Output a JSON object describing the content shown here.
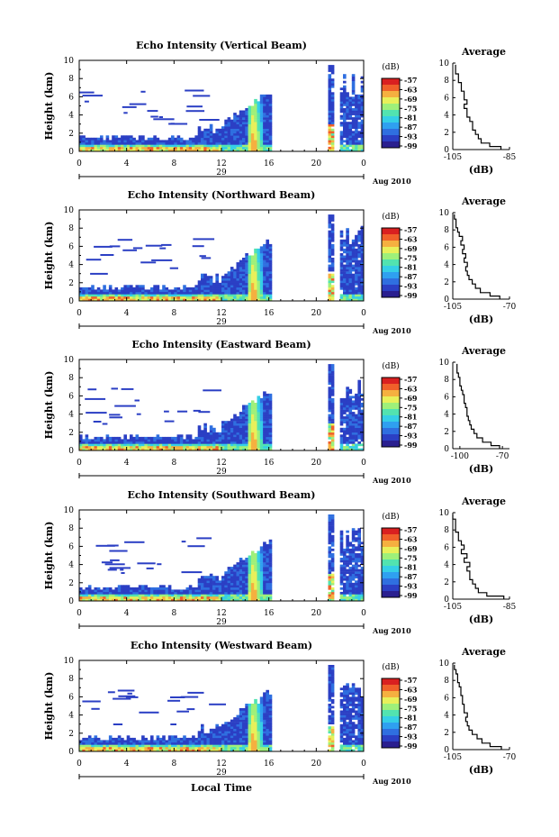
{
  "chart_data": [
    {
      "type": "heatmap",
      "title": "Echo Intensity (Vertical Beam)",
      "ylabel": "Height (km)",
      "xticks": [
        "0",
        "4",
        "8",
        "12",
        "16",
        "20",
        "0"
      ],
      "yticks": [
        "0",
        "2",
        "4",
        "6",
        "8",
        "10"
      ],
      "ylim": [
        0,
        10
      ],
      "xlim": [
        0,
        24
      ],
      "day_label": "29",
      "date_label": "Aug 2010",
      "colorbar": {
        "unit": "(dB)",
        "ticks": [
          "-57",
          "-63",
          "-69",
          "-75",
          "-81",
          "-87",
          "-93",
          "-99"
        ]
      },
      "average_profile": {
        "title": "Average",
        "xlabel": "(dB)",
        "xticks": [
          "-105",
          "-85"
        ],
        "yticks": [
          "0",
          "2",
          "4",
          "6",
          "8",
          "10"
        ],
        "xlim": [
          -105,
          -85
        ],
        "ylim": [
          0,
          10
        ],
        "height_km": [
          0.2,
          0.5,
          1,
          1.5,
          2,
          2.5,
          3,
          3.5,
          4,
          4.5,
          5,
          5.5,
          6,
          6.5,
          7,
          7.5,
          8,
          8.5,
          9,
          9.5
        ],
        "values_db": [
          -88,
          -92,
          -95,
          -96,
          -97,
          -98,
          -98,
          -99,
          -100,
          -100,
          -101,
          -100,
          -101,
          -101,
          -102,
          -102,
          -103,
          -103,
          -104,
          -104
        ]
      }
    },
    {
      "type": "heatmap",
      "title": "Echo Intensity (Northward Beam)",
      "ylabel": "Height (km)",
      "xticks": [
        "0",
        "4",
        "8",
        "12",
        "16",
        "20",
        "0"
      ],
      "yticks": [
        "0",
        "2",
        "4",
        "6",
        "8",
        "10"
      ],
      "ylim": [
        0,
        10
      ],
      "xlim": [
        0,
        24
      ],
      "day_label": "29",
      "date_label": "Aug 2010",
      "colorbar": {
        "unit": "(dB)",
        "ticks": [
          "-57",
          "-63",
          "-69",
          "-75",
          "-81",
          "-87",
          "-93",
          "-99"
        ]
      },
      "average_profile": {
        "title": "Average",
        "xlabel": "(dB)",
        "xticks": [
          "-105",
          "-70"
        ],
        "yticks": [
          "0",
          "2",
          "4",
          "6",
          "8",
          "10"
        ],
        "xlim": [
          -105,
          -70
        ],
        "ylim": [
          0,
          10
        ],
        "height_km": [
          0.2,
          0.5,
          1,
          1.5,
          2,
          2.5,
          3,
          3.5,
          4,
          4.5,
          5,
          5.5,
          6,
          6.5,
          7,
          7.5,
          8,
          8.5,
          9,
          9.5
        ],
        "values_db": [
          -76,
          -82,
          -88,
          -91,
          -93,
          -95,
          -96,
          -97,
          -96,
          -98,
          -97,
          -99,
          -98,
          -100,
          -99,
          -101,
          -102,
          -103,
          -103,
          -104
        ]
      }
    },
    {
      "type": "heatmap",
      "title": "Echo Intensity (Eastward Beam)",
      "ylabel": "Height (km)",
      "xticks": [
        "0",
        "4",
        "8",
        "12",
        "16",
        "20",
        "0"
      ],
      "yticks": [
        "0",
        "2",
        "4",
        "6",
        "8",
        "10"
      ],
      "ylim": [
        0,
        10
      ],
      "xlim": [
        0,
        24
      ],
      "day_label": "29",
      "date_label": "Aug 2010",
      "colorbar": {
        "unit": "(dB)",
        "ticks": [
          "-57",
          "-63",
          "-69",
          "-75",
          "-81",
          "-87",
          "-93",
          "-99"
        ]
      },
      "average_profile": {
        "title": "Average",
        "xlabel": "(dB)",
        "xticks": [
          "-100",
          "-70"
        ],
        "yticks": [
          "0",
          "2",
          "4",
          "6",
          "8",
          "10"
        ],
        "xlim": [
          -105,
          -65
        ],
        "ylim": [
          0,
          10
        ],
        "height_km": [
          0.2,
          0.5,
          1,
          1.5,
          2,
          2.5,
          3,
          3.5,
          4,
          4.5,
          5,
          5.5,
          6,
          6.5,
          7,
          7.5,
          8,
          8.5,
          9,
          9.5
        ],
        "values_db": [
          -72,
          -78,
          -84,
          -88,
          -90,
          -92,
          -93,
          -94,
          -95,
          -95,
          -96,
          -97,
          -97,
          -98,
          -99,
          -100,
          -100,
          -101,
          -102,
          -102
        ]
      }
    },
    {
      "type": "heatmap",
      "title": "Echo Intensity (Southward Beam)",
      "ylabel": "Height (km)",
      "xticks": [
        "0",
        "4",
        "8",
        "12",
        "16",
        "20",
        "0"
      ],
      "yticks": [
        "0",
        "2",
        "4",
        "6",
        "8",
        "10"
      ],
      "ylim": [
        0,
        10
      ],
      "xlim": [
        0,
        24
      ],
      "day_label": "29",
      "date_label": "Aug 2010",
      "colorbar": {
        "unit": "(dB)",
        "ticks": [
          "-57",
          "-63",
          "-69",
          "-75",
          "-81",
          "-87",
          "-93",
          "-99"
        ]
      },
      "average_profile": {
        "title": "Average",
        "xlabel": "(dB)",
        "xticks": [
          "-105",
          "-85"
        ],
        "yticks": [
          "0",
          "2",
          "4",
          "6",
          "8",
          "10"
        ],
        "xlim": [
          -105,
          -85
        ],
        "ylim": [
          0,
          10
        ],
        "height_km": [
          0.2,
          0.5,
          1,
          1.5,
          2,
          2.5,
          3,
          3.5,
          4,
          4.5,
          5,
          5.5,
          6,
          6.5,
          7,
          7.5,
          8,
          8.5,
          9,
          9.5
        ],
        "values_db": [
          -87,
          -93,
          -96,
          -97,
          -98,
          -99,
          -99,
          -100,
          -99,
          -101,
          -100,
          -102,
          -101,
          -102,
          -103,
          -103,
          -104,
          -104,
          -104,
          -105
        ]
      }
    },
    {
      "type": "heatmap",
      "title": "Echo Intensity (Westward Beam)",
      "ylabel": "Height (km)",
      "xticks": [
        "0",
        "4",
        "8",
        "12",
        "16",
        "20",
        "0"
      ],
      "yticks": [
        "0",
        "2",
        "4",
        "6",
        "8",
        "10"
      ],
      "ylim": [
        0,
        10
      ],
      "xlim": [
        0,
        24
      ],
      "day_label": "29",
      "date_label": "Aug 2010",
      "xlabel": "Local Time",
      "colorbar": {
        "unit": "(dB)",
        "ticks": [
          "-57",
          "-63",
          "-69",
          "-75",
          "-81",
          "-87",
          "-93",
          "-99"
        ]
      },
      "average_profile": {
        "title": "Average",
        "xlabel": "(dB)",
        "xticks": [
          "-105",
          "-70"
        ],
        "yticks": [
          "0",
          "2",
          "4",
          "6",
          "8",
          "10"
        ],
        "xlim": [
          -105,
          -70
        ],
        "ylim": [
          0,
          10
        ],
        "height_km": [
          0.2,
          0.5,
          1,
          1.5,
          2,
          2.5,
          3,
          3.5,
          4,
          4.5,
          5,
          5.5,
          6,
          6.5,
          7,
          7.5,
          8,
          8.5,
          9,
          9.5
        ],
        "values_db": [
          -75,
          -82,
          -87,
          -90,
          -93,
          -95,
          -96,
          -97,
          -96,
          -98,
          -98,
          -99,
          -99,
          -100,
          -100,
          -101,
          -102,
          -102,
          -103,
          -104
        ]
      }
    }
  ]
}
